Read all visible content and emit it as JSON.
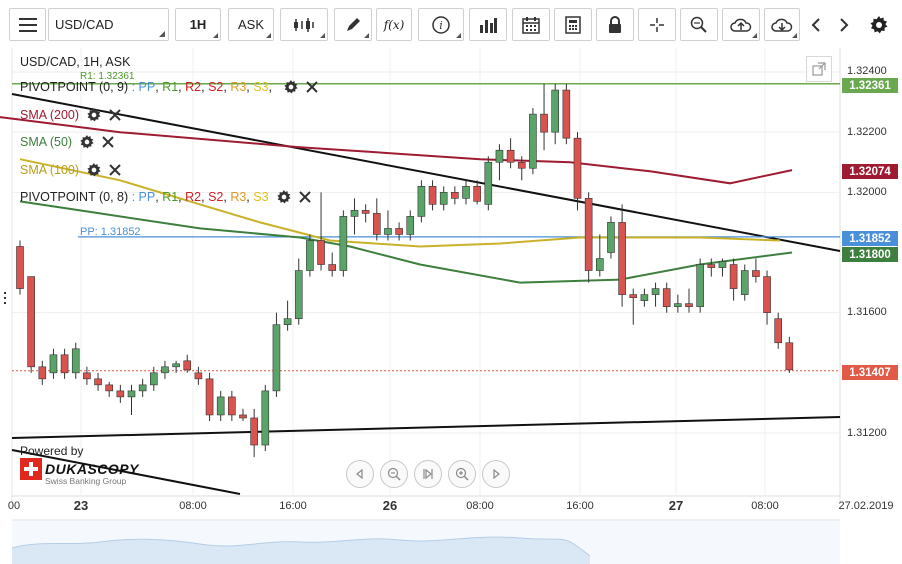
{
  "toolbar": {
    "menu_icon": "hamburger-icon",
    "symbol": "USD/CAD",
    "timeframe": "1H",
    "price_side": "ASK",
    "icons": [
      "candles-icon",
      "pencil-icon",
      "function-icon",
      "info-icon",
      "bar-chart-icon",
      "calendar-icon",
      "calculator-icon",
      "lock-icon",
      "crosshair-icon",
      "zoom-icon",
      "upload-icon",
      "download-icon",
      "chevron-left-icon",
      "chevron-right-icon",
      "gear-icon"
    ],
    "fx_label": "f(x)"
  },
  "chart": {
    "title": "USD/CAD, 1H, ASK",
    "indicators": [
      {
        "name": "PIVOTPOINT (0, 9)",
        "sep": " : ",
        "levels": [
          "PP",
          "R1",
          "R2",
          "S2",
          "R3",
          "S3"
        ],
        "level_sep": ", "
      },
      {
        "name": "SMA (200)"
      },
      {
        "name": "SMA (50)"
      },
      {
        "name": "SMA (100)"
      },
      {
        "name": "PIVOTPOINT (0, 8)",
        "sep": " : ",
        "levels": [
          "PP",
          "R1",
          "R2",
          "S2",
          "R3",
          "S3"
        ],
        "level_sep": ", "
      }
    ],
    "r1_label": "R1: 1.32361",
    "pp_label": "PP: 1.31852",
    "price_tags": [
      "1.32361",
      "1.32074",
      "1.31852",
      "1.31800",
      "1.31407"
    ],
    "y_ticks": [
      "1.32400",
      "1.32200",
      "1.32000",
      "1.31600",
      "1.31200"
    ],
    "x_ticks": [
      "00",
      "23",
      "08:00",
      "16:00",
      "26",
      "08:00",
      "16:00",
      "27",
      "08:00",
      "27.02.2019"
    ],
    "powered_by": "Powered by",
    "brand": "DUKASCOPY",
    "brand_sub": "Swiss Banking Group",
    "colors": {
      "bull": "#5aa469",
      "bear": "#d9534f",
      "sma200": "#9e1b32",
      "sma50": "#3d7f3d",
      "sma100": "#c9b227",
      "pp": "#4a90d9",
      "r1": "#6aa84f",
      "current": "#e05a47"
    }
  },
  "chart_data": {
    "type": "candlestick",
    "title": "USD/CAD, 1H, ASK",
    "ylim": [
      1.3108,
      1.3244
    ],
    "y_ticks": [
      1.324,
      1.322,
      1.32,
      1.316,
      1.312
    ],
    "levels": {
      "R1": 1.32361,
      "PP": 1.31852,
      "last": 1.31407,
      "sma200_last": 1.32074,
      "sma50_last": 1.318
    },
    "candles": [
      [
        1.3182,
        1.3184,
        1.3166,
        1.3168
      ],
      [
        1.3172,
        1.3172,
        1.314,
        1.3142
      ],
      [
        1.3142,
        1.3144,
        1.3136,
        1.3138
      ],
      [
        1.314,
        1.3148,
        1.3138,
        1.3146
      ],
      [
        1.3146,
        1.3148,
        1.3138,
        1.314
      ],
      [
        1.314,
        1.315,
        1.3138,
        1.3148
      ],
      [
        1.314,
        1.3142,
        1.3136,
        1.3138
      ],
      [
        1.3138,
        1.314,
        1.3134,
        1.3136
      ],
      [
        1.3136,
        1.3137,
        1.3132,
        1.3134
      ],
      [
        1.3134,
        1.3136,
        1.313,
        1.3132
      ],
      [
        1.3132,
        1.3136,
        1.3126,
        1.3134
      ],
      [
        1.3134,
        1.3138,
        1.3132,
        1.3136
      ],
      [
        1.3136,
        1.3142,
        1.3134,
        1.314
      ],
      [
        1.314,
        1.3144,
        1.3138,
        1.3142
      ],
      [
        1.3142,
        1.3144,
        1.314,
        1.3143
      ],
      [
        1.3144,
        1.3146,
        1.314,
        1.3141
      ],
      [
        1.314,
        1.3142,
        1.3136,
        1.3138
      ],
      [
        1.3138,
        1.314,
        1.3124,
        1.3126
      ],
      [
        1.3126,
        1.3134,
        1.3124,
        1.3132
      ],
      [
        1.3132,
        1.3134,
        1.3124,
        1.3126
      ],
      [
        1.3126,
        1.3128,
        1.3124,
        1.3125
      ],
      [
        1.3125,
        1.3128,
        1.3112,
        1.3116
      ],
      [
        1.3116,
        1.3136,
        1.3114,
        1.3134
      ],
      [
        1.3134,
        1.316,
        1.3132,
        1.3156
      ],
      [
        1.3156,
        1.3164,
        1.3154,
        1.3158
      ],
      [
        1.3158,
        1.3178,
        1.3156,
        1.3174
      ],
      [
        1.3174,
        1.3186,
        1.3172,
        1.3184
      ],
      [
        1.3184,
        1.32,
        1.3174,
        1.3176
      ],
      [
        1.3176,
        1.318,
        1.3172,
        1.3174
      ],
      [
        1.3174,
        1.3194,
        1.3172,
        1.3192
      ],
      [
        1.3192,
        1.3198,
        1.3186,
        1.3194
      ],
      [
        1.3194,
        1.3196,
        1.319,
        1.3193
      ],
      [
        1.3193,
        1.3198,
        1.3184,
        1.3186
      ],
      [
        1.3186,
        1.3194,
        1.3184,
        1.3188
      ],
      [
        1.3188,
        1.319,
        1.3184,
        1.3186
      ],
      [
        1.3186,
        1.3194,
        1.3184,
        1.3192
      ],
      [
        1.3192,
        1.3204,
        1.319,
        1.3202
      ],
      [
        1.3202,
        1.3204,
        1.3194,
        1.3196
      ],
      [
        1.3196,
        1.3202,
        1.3194,
        1.32
      ],
      [
        1.32,
        1.3202,
        1.3196,
        1.3198
      ],
      [
        1.3198,
        1.3204,
        1.3196,
        1.3202
      ],
      [
        1.3202,
        1.3204,
        1.3196,
        1.3197
      ],
      [
        1.3196,
        1.3212,
        1.3194,
        1.321
      ],
      [
        1.321,
        1.3216,
        1.3204,
        1.3214
      ],
      [
        1.3214,
        1.3218,
        1.3208,
        1.321
      ],
      [
        1.321,
        1.3212,
        1.3204,
        1.3208
      ],
      [
        1.3208,
        1.3228,
        1.3206,
        1.3226
      ],
      [
        1.3226,
        1.3236,
        1.3214,
        1.322
      ],
      [
        1.322,
        1.3236,
        1.3216,
        1.3234
      ],
      [
        1.3234,
        1.3236,
        1.3216,
        1.3218
      ],
      [
        1.3218,
        1.322,
        1.3194,
        1.3198
      ],
      [
        1.3198,
        1.32,
        1.317,
        1.3174
      ],
      [
        1.3174,
        1.3186,
        1.3172,
        1.3178
      ],
      [
        1.318,
        1.3192,
        1.3178,
        1.319
      ],
      [
        1.319,
        1.3196,
        1.3162,
        1.3166
      ],
      [
        1.3166,
        1.3168,
        1.3156,
        1.3165
      ],
      [
        1.3164,
        1.3168,
        1.3162,
        1.3166
      ],
      [
        1.3166,
        1.317,
        1.3162,
        1.3168
      ],
      [
        1.3168,
        1.317,
        1.316,
        1.3162
      ],
      [
        1.3162,
        1.3166,
        1.316,
        1.3163
      ],
      [
        1.3163,
        1.3168,
        1.316,
        1.3162
      ],
      [
        1.3162,
        1.3178,
        1.316,
        1.3176
      ],
      [
        1.3176,
        1.3178,
        1.3172,
        1.3175
      ],
      [
        1.3175,
        1.3178,
        1.3172,
        1.3177
      ],
      [
        1.3176,
        1.3178,
        1.3164,
        1.3168
      ],
      [
        1.3166,
        1.3176,
        1.3164,
        1.3174
      ],
      [
        1.3174,
        1.3178,
        1.317,
        1.3172
      ],
      [
        1.3172,
        1.3174,
        1.3156,
        1.316
      ],
      [
        1.3158,
        1.316,
        1.3148,
        1.315
      ],
      [
        1.315,
        1.3152,
        1.314,
        1.3141
      ]
    ],
    "sma200": [
      [
        0,
        1.3225
      ],
      [
        120,
        1.322
      ],
      [
        300,
        1.3215
      ],
      [
        480,
        1.3211
      ],
      [
        570,
        1.321
      ],
      [
        650,
        1.3207
      ],
      [
        730,
        1.3203
      ],
      [
        792,
        1.32074
      ]
    ],
    "sma50": [
      [
        20,
        1.3197
      ],
      [
        100,
        1.3193
      ],
      [
        200,
        1.3188
      ],
      [
        300,
        1.3185
      ],
      [
        350,
        1.3182
      ],
      [
        420,
        1.3176
      ],
      [
        520,
        1.317
      ],
      [
        620,
        1.3171
      ],
      [
        700,
        1.3176
      ],
      [
        792,
        1.318
      ]
    ],
    "sma100": [
      [
        20,
        1.3211
      ],
      [
        120,
        1.3204
      ],
      [
        200,
        1.3196
      ],
      [
        260,
        1.319
      ],
      [
        330,
        1.3184
      ],
      [
        420,
        1.3182
      ],
      [
        500,
        1.3183
      ],
      [
        580,
        1.3185
      ],
      [
        700,
        1.3185
      ],
      [
        780,
        1.3184
      ]
    ]
  }
}
